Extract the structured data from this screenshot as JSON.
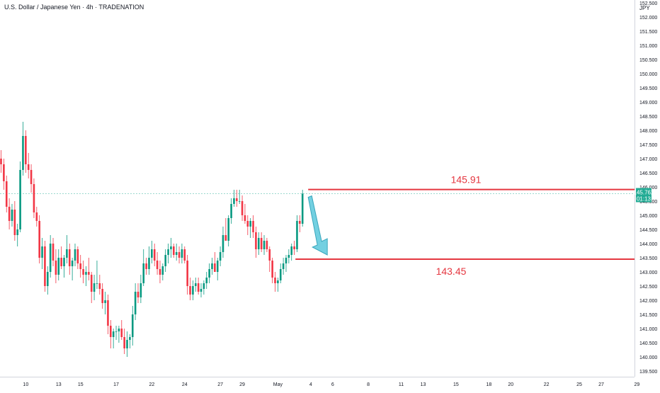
{
  "header": {
    "title": "U.S. Dollar / Japanese Yen · 4h · TRADENATION",
    "currency": "JPY"
  },
  "price_tag": {
    "price": "145.762",
    "countdown": "01:13"
  },
  "colors": {
    "up": "#089981",
    "down": "#f23645",
    "level": "#e53740",
    "current": "#22ab94",
    "arrow": "#5bc8dc"
  },
  "chart_data": {
    "type": "candlestick",
    "ylim": [
      139.3,
      152.6
    ],
    "y_ticks": [
      "139.500",
      "140.000",
      "140.500",
      "141.000",
      "141.500",
      "142.000",
      "142.500",
      "143.000",
      "143.500",
      "144.000",
      "144.500",
      "145.000",
      "145.500",
      "146.000",
      "146.500",
      "147.000",
      "147.500",
      "148.000",
      "148.500",
      "149.000",
      "149.500",
      "150.000",
      "150.500",
      "151.000",
      "151.500",
      "152.000",
      "152.500"
    ],
    "x_ticks": [
      {
        "label": "10",
        "bar": 9
      },
      {
        "label": "13",
        "bar": 21
      },
      {
        "label": "15",
        "bar": 29
      },
      {
        "label": "17",
        "bar": 42
      },
      {
        "label": "22",
        "bar": 55
      },
      {
        "label": "24",
        "bar": 67
      },
      {
        "label": "27",
        "bar": 80
      },
      {
        "label": "29",
        "bar": 88
      },
      {
        "label": "May",
        "bar": 101
      },
      {
        "label": "4",
        "bar": 113
      },
      {
        "label": "6",
        "bar": 121
      },
      {
        "label": "8",
        "bar": 134
      },
      {
        "label": "11",
        "bar": 146
      },
      {
        "label": "13",
        "bar": 154
      },
      {
        "label": "15",
        "bar": 166
      },
      {
        "label": "18",
        "bar": 178
      },
      {
        "label": "20",
        "bar": 186
      },
      {
        "label": "22",
        "bar": 199
      },
      {
        "label": "25",
        "bar": 211
      },
      {
        "label": "27",
        "bar": 219
      },
      {
        "label": "29",
        "bar": 232
      }
    ],
    "current_price": 145.762,
    "levels": [
      {
        "label": "145.91",
        "value": 145.91
      },
      {
        "label": "143.45",
        "value": 143.45
      }
    ],
    "candles": [
      [
        147.0,
        147.3,
        146.5,
        146.8
      ],
      [
        146.8,
        147.0,
        145.9,
        146.2
      ],
      [
        146.2,
        146.4,
        145.1,
        145.3
      ],
      [
        145.3,
        145.6,
        144.5,
        144.8
      ],
      [
        144.8,
        145.4,
        144.6,
        145.2
      ],
      [
        145.2,
        145.5,
        144.1,
        144.3
      ],
      [
        144.3,
        144.7,
        143.9,
        144.5
      ],
      [
        144.5,
        146.9,
        144.4,
        146.6
      ],
      [
        146.6,
        148.3,
        146.4,
        147.8
      ],
      [
        147.8,
        148.0,
        146.5,
        146.8
      ],
      [
        146.8,
        147.2,
        146.3,
        146.6
      ],
      [
        146.6,
        146.8,
        145.8,
        146.1
      ],
      [
        146.1,
        146.3,
        144.9,
        145.1
      ],
      [
        145.1,
        145.3,
        144.6,
        144.8
      ],
      [
        144.8,
        145.0,
        143.3,
        143.5
      ],
      [
        143.5,
        144.2,
        143.1,
        143.9
      ],
      [
        143.9,
        144.1,
        142.3,
        142.5
      ],
      [
        142.5,
        143.2,
        142.2,
        143.0
      ],
      [
        143.0,
        144.3,
        142.8,
        144.0
      ],
      [
        144.0,
        144.2,
        143.2,
        143.4
      ],
      [
        143.4,
        143.8,
        142.6,
        142.9
      ],
      [
        142.9,
        143.8,
        142.7,
        143.5
      ],
      [
        143.5,
        143.9,
        143.1,
        143.2
      ],
      [
        143.2,
        143.6,
        142.8,
        143.5
      ],
      [
        143.5,
        144.3,
        143.3,
        143.8
      ],
      [
        143.8,
        144.0,
        142.9,
        143.2
      ],
      [
        143.2,
        143.5,
        142.7,
        143.4
      ],
      [
        143.4,
        144.0,
        143.2,
        143.8
      ],
      [
        143.8,
        143.9,
        143.1,
        143.3
      ],
      [
        143.3,
        143.6,
        142.8,
        143.1
      ],
      [
        143.1,
        143.4,
        142.6,
        142.9
      ],
      [
        142.9,
        143.2,
        142.5,
        143.0
      ],
      [
        143.0,
        143.5,
        142.7,
        142.9
      ],
      [
        142.9,
        143.0,
        141.9,
        142.3
      ],
      [
        142.3,
        142.9,
        142.0,
        142.6
      ],
      [
        142.6,
        143.4,
        142.4,
        142.6
      ],
      [
        142.6,
        142.9,
        142.2,
        142.4
      ],
      [
        142.4,
        142.6,
        141.7,
        141.9
      ],
      [
        141.9,
        142.3,
        141.5,
        142.0
      ],
      [
        142.0,
        142.2,
        140.8,
        141.1
      ],
      [
        141.1,
        141.3,
        140.3,
        140.7
      ],
      [
        140.7,
        141.0,
        140.3,
        140.9
      ],
      [
        140.9,
        141.1,
        140.6,
        140.9
      ],
      [
        140.9,
        141.1,
        140.5,
        141.0
      ],
      [
        141.0,
        141.3,
        140.6,
        140.7
      ],
      [
        140.7,
        141.0,
        140.1,
        140.3
      ],
      [
        140.3,
        140.9,
        140.0,
        140.6
      ],
      [
        140.6,
        140.8,
        140.3,
        140.7
      ],
      [
        140.7,
        141.8,
        140.4,
        141.5
      ],
      [
        141.5,
        142.6,
        141.3,
        142.3
      ],
      [
        142.3,
        142.6,
        141.9,
        142.1
      ],
      [
        142.1,
        142.9,
        141.9,
        142.6
      ],
      [
        142.6,
        143.8,
        142.5,
        143.3
      ],
      [
        143.3,
        143.5,
        142.9,
        143.1
      ],
      [
        143.1,
        143.9,
        142.9,
        143.5
      ],
      [
        143.5,
        144.1,
        143.3,
        143.8
      ],
      [
        143.8,
        144.0,
        143.2,
        143.4
      ],
      [
        143.4,
        143.7,
        142.9,
        143.1
      ],
      [
        143.1,
        143.4,
        142.6,
        142.9
      ],
      [
        142.9,
        143.3,
        142.7,
        143.2
      ],
      [
        143.2,
        143.8,
        143.0,
        143.6
      ],
      [
        143.6,
        144.0,
        143.3,
        143.8
      ],
      [
        143.8,
        144.2,
        143.5,
        143.9
      ],
      [
        143.9,
        144.0,
        143.5,
        143.6
      ],
      [
        143.6,
        144.0,
        143.4,
        143.7
      ],
      [
        143.7,
        143.9,
        143.3,
        143.5
      ],
      [
        143.5,
        144.0,
        143.3,
        143.8
      ],
      [
        143.8,
        143.9,
        143.3,
        143.4
      ],
      [
        143.4,
        143.6,
        142.2,
        142.5
      ],
      [
        142.5,
        142.8,
        142.0,
        142.2
      ],
      [
        142.2,
        142.7,
        142.0,
        142.5
      ],
      [
        142.5,
        142.8,
        142.3,
        142.6
      ],
      [
        142.6,
        142.8,
        142.2,
        142.3
      ],
      [
        142.3,
        142.6,
        142.1,
        142.4
      ],
      [
        142.4,
        142.7,
        142.2,
        142.6
      ],
      [
        142.6,
        143.0,
        142.4,
        142.8
      ],
      [
        142.8,
        143.3,
        142.6,
        143.1
      ],
      [
        143.1,
        143.5,
        142.9,
        143.3
      ],
      [
        143.3,
        143.7,
        143.1,
        143.0
      ],
      [
        143.0,
        143.5,
        142.7,
        143.4
      ],
      [
        143.4,
        143.9,
        143.2,
        143.7
      ],
      [
        143.7,
        144.6,
        143.5,
        144.3
      ],
      [
        144.3,
        144.9,
        144.1,
        144.1
      ],
      [
        144.1,
        145.0,
        143.9,
        144.9
      ],
      [
        144.9,
        145.6,
        144.7,
        145.4
      ],
      [
        145.4,
        145.9,
        145.3,
        145.6
      ],
      [
        145.6,
        145.9,
        145.3,
        145.5
      ],
      [
        145.5,
        145.9,
        145.4,
        145.5
      ],
      [
        145.5,
        145.7,
        144.8,
        145.0
      ],
      [
        145.0,
        145.4,
        144.7,
        144.8
      ],
      [
        144.8,
        145.0,
        144.3,
        144.6
      ],
      [
        144.6,
        144.9,
        144.2,
        144.8
      ],
      [
        144.8,
        145.0,
        144.2,
        144.4
      ],
      [
        144.4,
        144.6,
        143.5,
        143.8
      ],
      [
        143.8,
        144.4,
        143.6,
        144.2
      ],
      [
        144.2,
        144.4,
        143.7,
        143.8
      ],
      [
        143.8,
        144.3,
        143.6,
        144.1
      ],
      [
        144.1,
        144.2,
        143.7,
        143.8
      ],
      [
        143.8,
        143.9,
        143.0,
        143.4
      ],
      [
        143.4,
        143.5,
        142.6,
        142.8
      ],
      [
        142.8,
        143.0,
        142.3,
        142.6
      ],
      [
        142.6,
        142.8,
        142.3,
        142.7
      ],
      [
        142.7,
        143.3,
        142.6,
        143.1
      ],
      [
        143.1,
        143.5,
        142.9,
        143.3
      ],
      [
        143.3,
        143.6,
        143.0,
        143.5
      ],
      [
        143.5,
        143.8,
        143.3,
        143.6
      ],
      [
        143.6,
        144.0,
        143.4,
        143.9
      ],
      [
        143.9,
        144.1,
        143.6,
        143.8
      ],
      [
        143.8,
        145.0,
        143.7,
        144.8
      ],
      [
        144.8,
        145.0,
        144.4,
        144.7
      ],
      [
        144.7,
        145.9,
        144.6,
        145.762
      ]
    ]
  }
}
